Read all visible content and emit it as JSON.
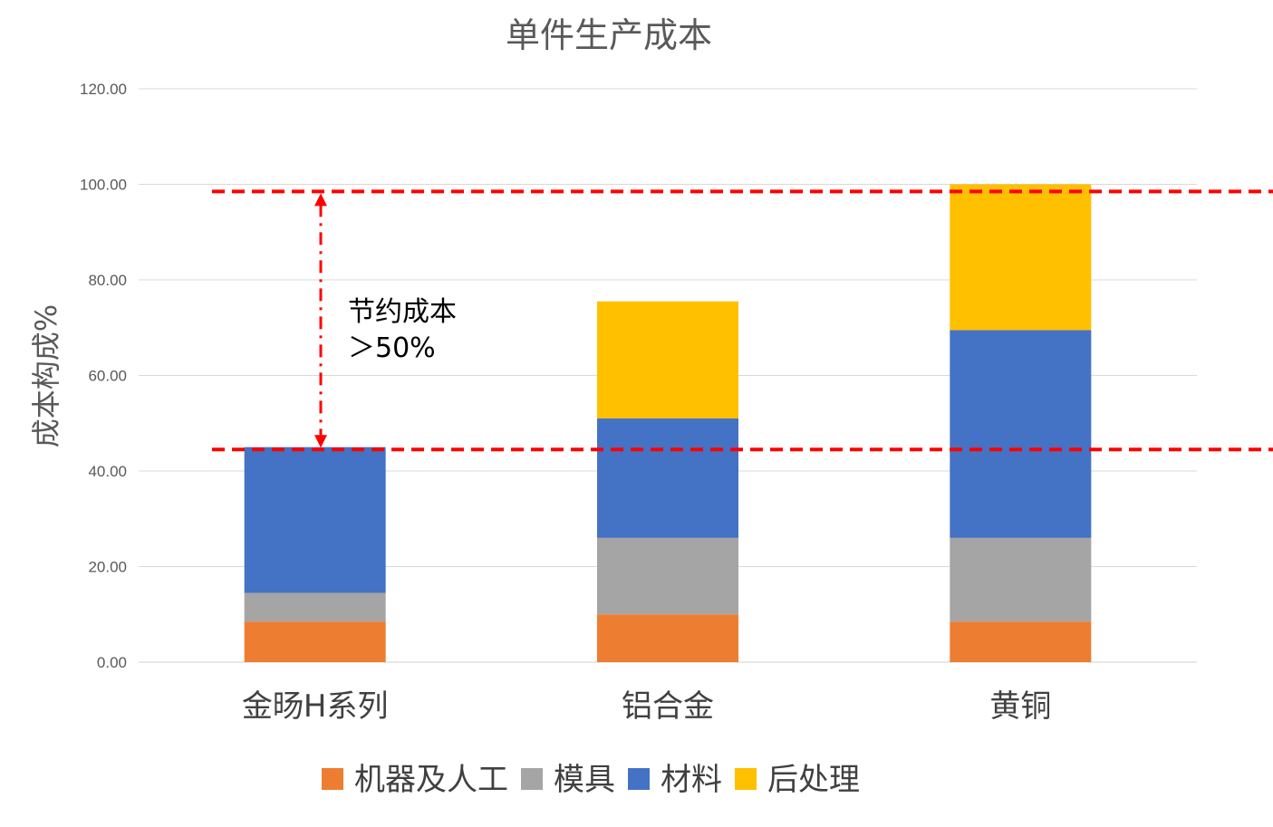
{
  "chart_data": {
    "type": "bar",
    "stacked": true,
    "title": "单件生产成本",
    "xlabel": "",
    "ylabel": "成本构成%",
    "ylim": [
      0,
      120
    ],
    "yticks": [
      "0.00",
      "20.00",
      "40.00",
      "60.00",
      "80.00",
      "100.00",
      "120.00"
    ],
    "grid": true,
    "legend_position": "bottom",
    "categories": [
      "金旸H系列",
      "铝合金",
      "黄铜"
    ],
    "series": [
      {
        "name": "机器及人工",
        "color": "#ED7D31",
        "values": [
          8.5,
          10.0,
          8.5
        ]
      },
      {
        "name": "模具",
        "color": "#A5A5A5",
        "values": [
          6.0,
          16.0,
          17.5
        ]
      },
      {
        "name": "材料",
        "color": "#4472C4",
        "values": [
          30.5,
          25.0,
          43.5
        ]
      },
      {
        "name": "后处理",
        "color": "#FFC000",
        "values": [
          0,
          24.5,
          30.5
        ]
      }
    ],
    "annotation": {
      "lines": [
        "节约成本",
        "＞50%"
      ],
      "upper_value": 98.5,
      "lower_value": 44.5,
      "color": "#FF0000"
    }
  }
}
